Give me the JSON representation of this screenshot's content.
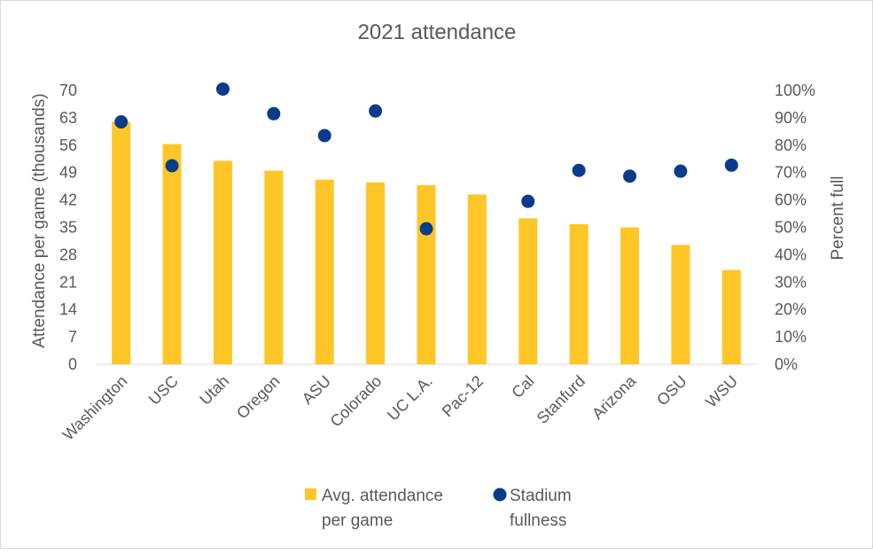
{
  "chart_data": {
    "type": "bar",
    "title": "2021 attendance",
    "categories": [
      "Washington",
      "USC",
      "Utah",
      "Oregon",
      "ASU",
      "Colorado",
      "UC L.A.",
      "Pac-12",
      "Cal",
      "Stanfurd",
      "Arizona",
      "OSU",
      "WSU"
    ],
    "ylabel": "Attendance per game (thousands)",
    "y2label": "Percent full",
    "ylim": [
      0,
      70
    ],
    "y_ticks": [
      "0",
      "7",
      "14",
      "21",
      "28",
      "35",
      "42",
      "49",
      "56",
      "63",
      "70"
    ],
    "y2lim": [
      0,
      100
    ],
    "y2_ticks": [
      "0%",
      "10%",
      "20%",
      "30%",
      "40%",
      "50%",
      "60%",
      "70%",
      "80%",
      "90%",
      "100%"
    ],
    "series": [
      {
        "name": "Avg. attendance per game",
        "legend_lines": [
          "Avg. attendance",
          "per game"
        ],
        "kind": "bar",
        "axis": "left",
        "color": "#ffc627",
        "values": [
          62.0,
          56.3,
          52.0,
          49.5,
          47.2,
          46.5,
          45.8,
          43.4,
          37.3,
          35.8,
          35.0,
          30.5,
          24.1
        ]
      },
      {
        "name": "Stadium fullness",
        "legend_lines": [
          "Stadium",
          "fullness"
        ],
        "kind": "scatter",
        "axis": "right",
        "color": "#0b3c8a",
        "values": [
          88.5,
          72.5,
          100.5,
          91.5,
          83.5,
          null,
          49.5,
          null,
          59.5,
          70.8,
          68.7,
          70.5,
          72.7
        ]
      }
    ],
    "extra_points": [
      {
        "category": "Colorado",
        "series": "Stadium fullness",
        "value": 92.5
      }
    ],
    "legend": "bottom"
  }
}
